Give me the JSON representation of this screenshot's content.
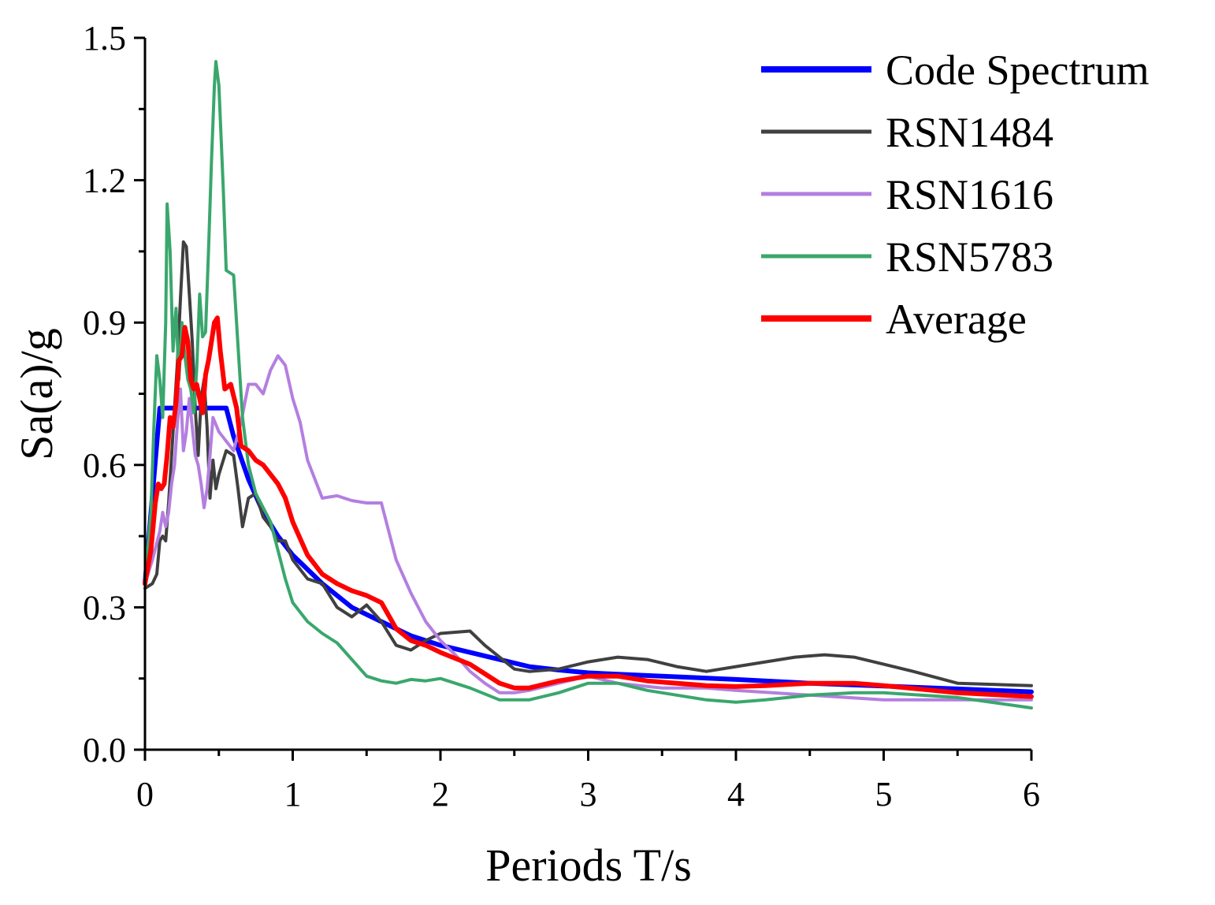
{
  "chart_data": {
    "type": "line",
    "title": "",
    "xlabel": "Periods T/s",
    "ylabel": "Sa(a)/g",
    "xlim": [
      0,
      6
    ],
    "ylim": [
      0,
      1.5
    ],
    "x_ticks": [
      0,
      1,
      2,
      3,
      4,
      5,
      6
    ],
    "x_tick_labels": [
      "0",
      "1",
      "2",
      "3",
      "4",
      "5",
      "6"
    ],
    "y_ticks": [
      0,
      0.3,
      0.6,
      0.9,
      1.2,
      1.5
    ],
    "y_tick_labels": [
      "0.0",
      "0.3",
      "0.6",
      "0.9",
      "1.2",
      "1.5"
    ],
    "grid": false,
    "legend_position": "top-right",
    "series": [
      {
        "name": "Code Spectrum",
        "color": "#0000ff",
        "points": [
          [
            0,
            0.35
          ],
          [
            0.1,
            0.72
          ],
          [
            0.55,
            0.72
          ],
          [
            0.6,
            0.66
          ],
          [
            0.7,
            0.57
          ],
          [
            0.8,
            0.5
          ],
          [
            0.9,
            0.45
          ],
          [
            1.0,
            0.41
          ],
          [
            1.2,
            0.35
          ],
          [
            1.4,
            0.3
          ],
          [
            1.6,
            0.27
          ],
          [
            1.8,
            0.24
          ],
          [
            2.0,
            0.22
          ],
          [
            2.2,
            0.205
          ],
          [
            2.4,
            0.19
          ],
          [
            2.6,
            0.175
          ],
          [
            2.8,
            0.168
          ],
          [
            3.0,
            0.162
          ],
          [
            3.5,
            0.155
          ],
          [
            4.0,
            0.148
          ],
          [
            4.5,
            0.14
          ],
          [
            5.0,
            0.134
          ],
          [
            5.5,
            0.128
          ],
          [
            6.0,
            0.122
          ]
        ]
      },
      {
        "name": "RSN1484",
        "color": "#404040",
        "points": [
          [
            0,
            0.34
          ],
          [
            0.05,
            0.35
          ],
          [
            0.08,
            0.37
          ],
          [
            0.1,
            0.44
          ],
          [
            0.12,
            0.45
          ],
          [
            0.14,
            0.44
          ],
          [
            0.16,
            0.52
          ],
          [
            0.18,
            0.62
          ],
          [
            0.2,
            0.72
          ],
          [
            0.22,
            0.82
          ],
          [
            0.24,
            0.95
          ],
          [
            0.26,
            1.07
          ],
          [
            0.28,
            1.06
          ],
          [
            0.3,
            0.96
          ],
          [
            0.32,
            0.86
          ],
          [
            0.34,
            0.72
          ],
          [
            0.36,
            0.62
          ],
          [
            0.38,
            0.74
          ],
          [
            0.4,
            0.78
          ],
          [
            0.42,
            0.68
          ],
          [
            0.44,
            0.53
          ],
          [
            0.46,
            0.61
          ],
          [
            0.48,
            0.55
          ],
          [
            0.5,
            0.58
          ],
          [
            0.55,
            0.63
          ],
          [
            0.6,
            0.62
          ],
          [
            0.63,
            0.55
          ],
          [
            0.66,
            0.47
          ],
          [
            0.7,
            0.53
          ],
          [
            0.75,
            0.54
          ],
          [
            0.8,
            0.49
          ],
          [
            0.85,
            0.47
          ],
          [
            0.9,
            0.44
          ],
          [
            0.95,
            0.44
          ],
          [
            1.0,
            0.4
          ],
          [
            1.1,
            0.36
          ],
          [
            1.2,
            0.35
          ],
          [
            1.3,
            0.3
          ],
          [
            1.4,
            0.28
          ],
          [
            1.5,
            0.305
          ],
          [
            1.6,
            0.27
          ],
          [
            1.7,
            0.22
          ],
          [
            1.8,
            0.21
          ],
          [
            1.9,
            0.23
          ],
          [
            2.0,
            0.245
          ],
          [
            2.2,
            0.25
          ],
          [
            2.3,
            0.22
          ],
          [
            2.4,
            0.195
          ],
          [
            2.5,
            0.17
          ],
          [
            2.6,
            0.165
          ],
          [
            2.8,
            0.17
          ],
          [
            3.0,
            0.185
          ],
          [
            3.2,
            0.195
          ],
          [
            3.4,
            0.19
          ],
          [
            3.6,
            0.175
          ],
          [
            3.8,
            0.165
          ],
          [
            4.0,
            0.175
          ],
          [
            4.2,
            0.185
          ],
          [
            4.4,
            0.195
          ],
          [
            4.6,
            0.2
          ],
          [
            4.8,
            0.195
          ],
          [
            5.0,
            0.18
          ],
          [
            5.2,
            0.165
          ],
          [
            5.5,
            0.14
          ],
          [
            6.0,
            0.135
          ]
        ]
      },
      {
        "name": "RSN1616",
        "color": "#b47fe0",
        "points": [
          [
            0,
            0.35
          ],
          [
            0.05,
            0.4
          ],
          [
            0.1,
            0.46
          ],
          [
            0.12,
            0.5
          ],
          [
            0.14,
            0.47
          ],
          [
            0.16,
            0.5
          ],
          [
            0.18,
            0.56
          ],
          [
            0.2,
            0.6
          ],
          [
            0.22,
            0.69
          ],
          [
            0.24,
            0.76
          ],
          [
            0.26,
            0.63
          ],
          [
            0.28,
            0.67
          ],
          [
            0.3,
            0.74
          ],
          [
            0.32,
            0.68
          ],
          [
            0.34,
            0.62
          ],
          [
            0.36,
            0.6
          ],
          [
            0.38,
            0.56
          ],
          [
            0.4,
            0.51
          ],
          [
            0.42,
            0.55
          ],
          [
            0.44,
            0.62
          ],
          [
            0.46,
            0.7
          ],
          [
            0.5,
            0.67
          ],
          [
            0.55,
            0.65
          ],
          [
            0.6,
            0.63
          ],
          [
            0.65,
            0.69
          ],
          [
            0.7,
            0.77
          ],
          [
            0.75,
            0.77
          ],
          [
            0.8,
            0.75
          ],
          [
            0.85,
            0.8
          ],
          [
            0.9,
            0.83
          ],
          [
            0.95,
            0.81
          ],
          [
            1.0,
            0.74
          ],
          [
            1.05,
            0.69
          ],
          [
            1.1,
            0.61
          ],
          [
            1.2,
            0.53
          ],
          [
            1.3,
            0.535
          ],
          [
            1.4,
            0.525
          ],
          [
            1.5,
            0.52
          ],
          [
            1.6,
            0.52
          ],
          [
            1.7,
            0.4
          ],
          [
            1.8,
            0.33
          ],
          [
            1.9,
            0.27
          ],
          [
            2.0,
            0.23
          ],
          [
            2.1,
            0.2
          ],
          [
            2.2,
            0.165
          ],
          [
            2.3,
            0.14
          ],
          [
            2.4,
            0.12
          ],
          [
            2.5,
            0.12
          ],
          [
            2.6,
            0.125
          ],
          [
            2.8,
            0.14
          ],
          [
            3.0,
            0.155
          ],
          [
            3.2,
            0.14
          ],
          [
            3.5,
            0.13
          ],
          [
            3.8,
            0.13
          ],
          [
            4.0,
            0.125
          ],
          [
            4.5,
            0.115
          ],
          [
            5.0,
            0.105
          ],
          [
            5.5,
            0.105
          ],
          [
            6.0,
            0.105
          ]
        ]
      },
      {
        "name": "RSN5783",
        "color": "#3aa76d",
        "points": [
          [
            0,
            0.36
          ],
          [
            0.04,
            0.5
          ],
          [
            0.06,
            0.68
          ],
          [
            0.08,
            0.83
          ],
          [
            0.1,
            0.78
          ],
          [
            0.12,
            0.7
          ],
          [
            0.14,
            0.9
          ],
          [
            0.15,
            1.15
          ],
          [
            0.17,
            1.05
          ],
          [
            0.19,
            0.84
          ],
          [
            0.21,
            0.93
          ],
          [
            0.23,
            0.78
          ],
          [
            0.25,
            0.9
          ],
          [
            0.27,
            0.83
          ],
          [
            0.29,
            0.78
          ],
          [
            0.31,
            0.76
          ],
          [
            0.33,
            0.71
          ],
          [
            0.35,
            0.8
          ],
          [
            0.37,
            0.96
          ],
          [
            0.39,
            0.87
          ],
          [
            0.41,
            0.88
          ],
          [
            0.43,
            1.05
          ],
          [
            0.45,
            1.24
          ],
          [
            0.47,
            1.4
          ],
          [
            0.48,
            1.45
          ],
          [
            0.5,
            1.4
          ],
          [
            0.53,
            1.18
          ],
          [
            0.55,
            1.01
          ],
          [
            0.6,
            1.0
          ],
          [
            0.63,
            0.85
          ],
          [
            0.66,
            0.7
          ],
          [
            0.7,
            0.6
          ],
          [
            0.75,
            0.54
          ],
          [
            0.8,
            0.51
          ],
          [
            0.85,
            0.48
          ],
          [
            0.9,
            0.42
          ],
          [
            0.95,
            0.36
          ],
          [
            1.0,
            0.31
          ],
          [
            1.1,
            0.27
          ],
          [
            1.2,
            0.245
          ],
          [
            1.3,
            0.225
          ],
          [
            1.4,
            0.19
          ],
          [
            1.5,
            0.155
          ],
          [
            1.6,
            0.145
          ],
          [
            1.7,
            0.14
          ],
          [
            1.8,
            0.148
          ],
          [
            1.9,
            0.145
          ],
          [
            2.0,
            0.15
          ],
          [
            2.2,
            0.13
          ],
          [
            2.4,
            0.105
          ],
          [
            2.6,
            0.105
          ],
          [
            2.8,
            0.12
          ],
          [
            3.0,
            0.14
          ],
          [
            3.2,
            0.14
          ],
          [
            3.4,
            0.125
          ],
          [
            3.6,
            0.115
          ],
          [
            3.8,
            0.105
          ],
          [
            4.0,
            0.1
          ],
          [
            4.2,
            0.105
          ],
          [
            4.5,
            0.115
          ],
          [
            4.8,
            0.12
          ],
          [
            5.0,
            0.12
          ],
          [
            5.5,
            0.11
          ],
          [
            6.0,
            0.088
          ]
        ]
      },
      {
        "name": "Average",
        "color": "#ff0000",
        "points": [
          [
            0,
            0.35
          ],
          [
            0.04,
            0.42
          ],
          [
            0.07,
            0.52
          ],
          [
            0.09,
            0.56
          ],
          [
            0.11,
            0.55
          ],
          [
            0.13,
            0.56
          ],
          [
            0.15,
            0.62
          ],
          [
            0.17,
            0.7
          ],
          [
            0.19,
            0.68
          ],
          [
            0.21,
            0.73
          ],
          [
            0.23,
            0.82
          ],
          [
            0.25,
            0.83
          ],
          [
            0.27,
            0.89
          ],
          [
            0.29,
            0.86
          ],
          [
            0.31,
            0.78
          ],
          [
            0.33,
            0.76
          ],
          [
            0.35,
            0.77
          ],
          [
            0.37,
            0.74
          ],
          [
            0.39,
            0.71
          ],
          [
            0.41,
            0.79
          ],
          [
            0.43,
            0.82
          ],
          [
            0.45,
            0.86
          ],
          [
            0.47,
            0.9
          ],
          [
            0.49,
            0.91
          ],
          [
            0.51,
            0.84
          ],
          [
            0.54,
            0.76
          ],
          [
            0.58,
            0.77
          ],
          [
            0.62,
            0.72
          ],
          [
            0.65,
            0.64
          ],
          [
            0.7,
            0.63
          ],
          [
            0.75,
            0.61
          ],
          [
            0.8,
            0.6
          ],
          [
            0.85,
            0.58
          ],
          [
            0.9,
            0.56
          ],
          [
            0.95,
            0.53
          ],
          [
            1.0,
            0.48
          ],
          [
            1.1,
            0.41
          ],
          [
            1.2,
            0.37
          ],
          [
            1.3,
            0.35
          ],
          [
            1.4,
            0.335
          ],
          [
            1.5,
            0.325
          ],
          [
            1.6,
            0.31
          ],
          [
            1.7,
            0.255
          ],
          [
            1.8,
            0.23
          ],
          [
            1.9,
            0.22
          ],
          [
            2.0,
            0.205
          ],
          [
            2.2,
            0.18
          ],
          [
            2.3,
            0.16
          ],
          [
            2.4,
            0.14
          ],
          [
            2.5,
            0.13
          ],
          [
            2.6,
            0.13
          ],
          [
            2.8,
            0.145
          ],
          [
            3.0,
            0.155
          ],
          [
            3.2,
            0.155
          ],
          [
            3.4,
            0.145
          ],
          [
            3.6,
            0.14
          ],
          [
            3.8,
            0.135
          ],
          [
            4.0,
            0.133
          ],
          [
            4.2,
            0.135
          ],
          [
            4.5,
            0.14
          ],
          [
            4.8,
            0.14
          ],
          [
            5.0,
            0.135
          ],
          [
            5.5,
            0.12
          ],
          [
            6.0,
            0.112
          ]
        ]
      }
    ]
  }
}
